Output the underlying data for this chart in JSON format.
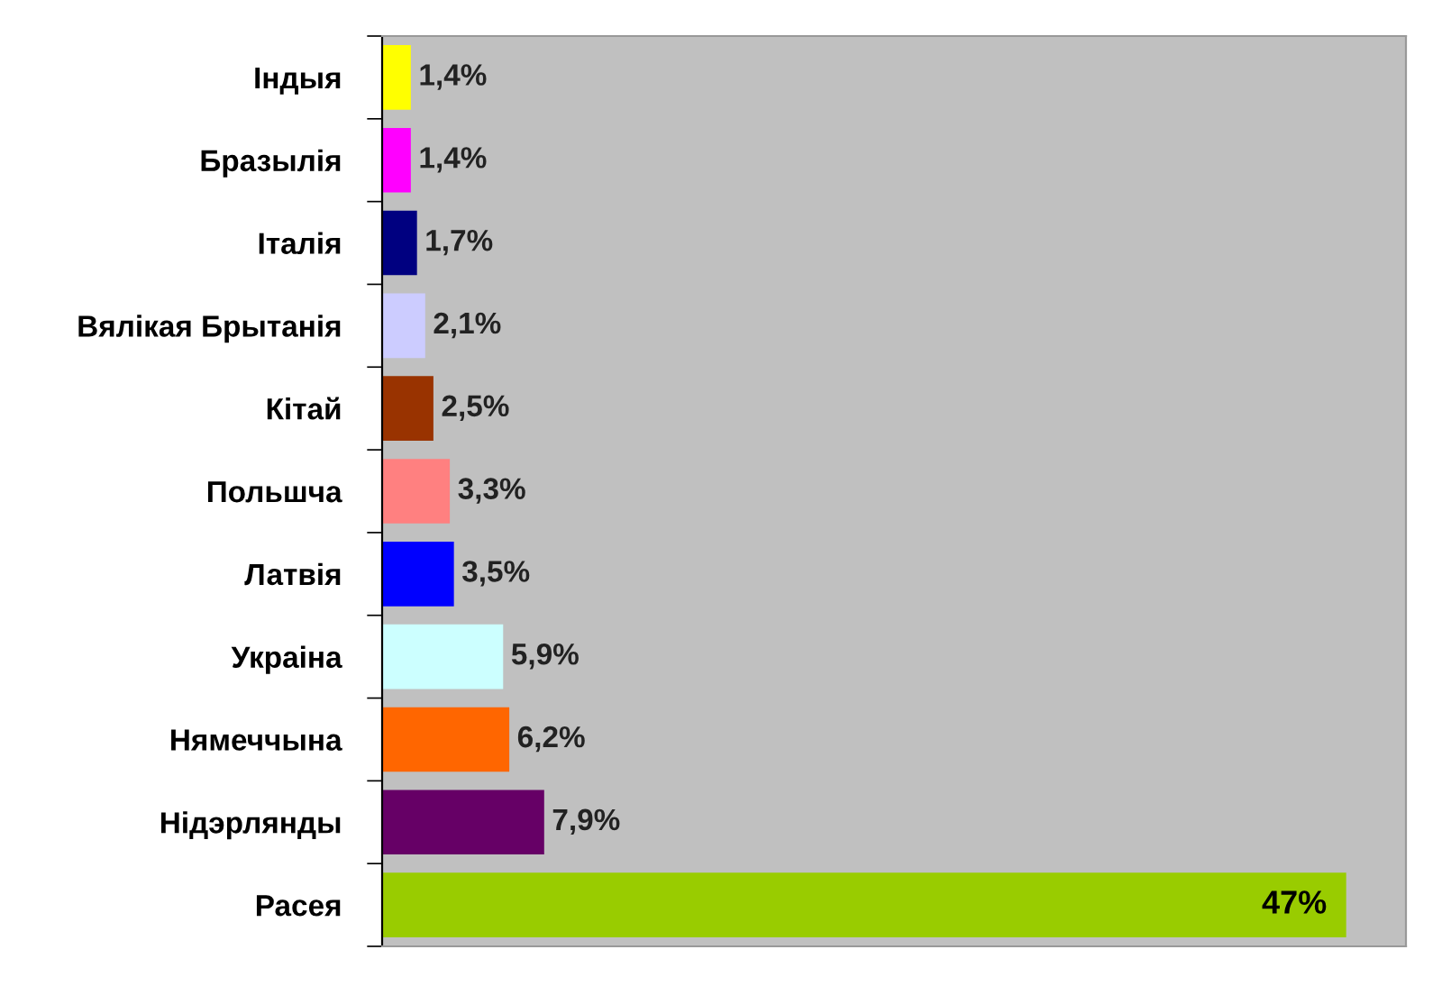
{
  "chart_data": {
    "type": "bar",
    "orientation": "horizontal",
    "tick_labels": "y",
    "categories": [
      "Індыя",
      "Бразылія",
      "Італія",
      "Вялікая Брытанія",
      "Кітай",
      "Польшча",
      "Латвія",
      "Украіна",
      "Нямеччына",
      "Нідэрлянды",
      "Расея"
    ],
    "values": [
      1.4,
      1.4,
      1.7,
      2.1,
      2.5,
      3.3,
      3.5,
      5.9,
      6.2,
      7.9,
      47
    ],
    "colors": [
      "#ffff00",
      "#ff00ff",
      "#000080",
      "#ccccff",
      "#993300",
      "#ff8080",
      "#0000ff",
      "#ccffff",
      "#ff6600",
      "#660066",
      "#99cc00"
    ],
    "value_labels": [
      "1,4%",
      "1,4%",
      "1,7%",
      "2,1%",
      "2,5%",
      "3,3%",
      "3,5%",
      "5,9%",
      "6,2%",
      "7,9%",
      "47%"
    ],
    "grid": false,
    "legend": false
  }
}
